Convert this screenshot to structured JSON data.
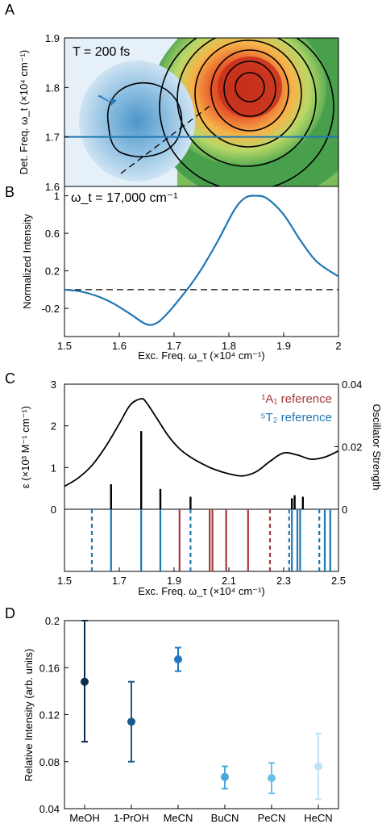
{
  "chart_data": [
    {
      "panel": "A",
      "type": "heatmap",
      "annotation": "T = 200 fs",
      "ylabel": "Det. Freq. ω_t (×10⁴ cm⁻¹)",
      "yticks": [
        "1.6",
        "1.7",
        "1.8",
        "1.9"
      ],
      "ylim": [
        1.6,
        1.9
      ],
      "xlim": [
        1.5,
        2.0
      ],
      "hline_y": 1.7,
      "peaks": [
        {
          "sign": "negative",
          "x": 1.6,
          "y": 1.73
        },
        {
          "sign": "positive",
          "x": 1.85,
          "y": 1.8
        }
      ],
      "colors": {
        "positive": "#d7301f",
        "negative": "#3b8bc2",
        "line": "#1f77b4"
      }
    },
    {
      "panel": "B",
      "type": "line",
      "annotation": "ω_t = 17,000 cm⁻¹",
      "ylabel": "Normalized Intensity",
      "xlabel": "Exc. Freq. ω_τ (×10⁴ cm⁻¹)",
      "xticks": [
        "1.5",
        "1.6",
        "1.7",
        "1.8",
        "1.9",
        "2"
      ],
      "yticks": [
        "-0.2",
        "0.2",
        "0.6",
        "1"
      ],
      "xlim": [
        1.5,
        2.0
      ],
      "ylim": [
        -0.5,
        1.1
      ],
      "x": [
        1.5,
        1.53,
        1.56,
        1.59,
        1.62,
        1.65,
        1.67,
        1.69,
        1.71,
        1.73,
        1.75,
        1.78,
        1.81,
        1.83,
        1.85,
        1.87,
        1.9,
        1.93,
        1.96,
        2.0
      ],
      "y": [
        0.0,
        -0.02,
        -0.07,
        -0.15,
        -0.26,
        -0.37,
        -0.35,
        -0.24,
        -0.1,
        0.05,
        0.22,
        0.52,
        0.85,
        0.98,
        1.0,
        0.97,
        0.8,
        0.53,
        0.3,
        0.14
      ],
      "baseline": 0,
      "color": "#1f77b4"
    },
    {
      "panel": "C",
      "type": "line",
      "legend": [
        "¹A₁ reference",
        "⁵T₂ reference"
      ],
      "ylabel": "ε (×10³ M⁻¹ cm⁻¹)",
      "y2label": "Oscillator Strength",
      "xlabel": "Exc. Freq. ω_τ (×10⁴ cm⁻¹)",
      "xticks": [
        "1.5",
        "1.7",
        "1.9",
        "2.1",
        "2.3",
        "2.5"
      ],
      "yticks": [
        "0",
        "1",
        "2",
        "3"
      ],
      "y2ticks": [
        "0",
        "0.02",
        "0.04"
      ],
      "xlim": [
        1.5,
        2.5
      ],
      "ylim": [
        0,
        3
      ],
      "y2lim": [
        0,
        0.04
      ],
      "spectrum": {
        "x": [
          1.5,
          1.55,
          1.6,
          1.65,
          1.7,
          1.74,
          1.78,
          1.8,
          1.84,
          1.88,
          1.92,
          1.96,
          2.0,
          2.05,
          2.1,
          2.15,
          2.2,
          2.25,
          2.3,
          2.35,
          2.4,
          2.45,
          2.5
        ],
        "y": [
          0.55,
          0.75,
          1.05,
          1.5,
          2.05,
          2.5,
          2.65,
          2.55,
          2.15,
          1.75,
          1.45,
          1.25,
          1.1,
          0.95,
          0.85,
          0.8,
          0.9,
          1.15,
          1.35,
          1.3,
          1.2,
          1.25,
          1.4
        ]
      },
      "sticks_x": [
        1.67,
        1.78,
        1.85,
        1.96,
        2.33,
        2.34,
        2.37
      ],
      "sticks_y": [
        0.008,
        0.025,
        0.0065,
        0.004,
        0.0035,
        0.0045,
        0.004
      ],
      "ref_1A1_solid": [
        1.92,
        2.03,
        2.04,
        2.09,
        2.17
      ],
      "ref_1A1_dashed": [
        2.25
      ],
      "ref_5T2_solid": [
        1.67,
        1.78,
        1.85,
        2.33,
        2.35,
        2.36,
        2.45,
        2.47
      ],
      "ref_5T2_dashed": [
        1.6,
        1.96,
        2.32,
        2.43
      ],
      "colors": {
        "1A1": "#a23b3b",
        "5T2": "#1f77b4",
        "spectrum": "#000000"
      }
    },
    {
      "panel": "D",
      "type": "scatter",
      "ylabel": "Relative Intensity (arb. units)",
      "categories": [
        "MeOH",
        "1-PrOH",
        "MeCN",
        "BuCN",
        "PeCN",
        "HeCN"
      ],
      "yticks": [
        "0.04",
        "0.08",
        "0.12",
        "0.16",
        "0.2"
      ],
      "ylim": [
        0.04,
        0.2
      ],
      "values": [
        0.148,
        0.114,
        0.167,
        0.067,
        0.066,
        0.076
      ],
      "err_low": [
        0.097,
        0.08,
        0.157,
        0.057,
        0.053,
        0.048
      ],
      "err_high": [
        0.2,
        0.148,
        0.177,
        0.076,
        0.079,
        0.104
      ],
      "colors": [
        "#0d2c4f",
        "#1a5a8a",
        "#1f77c4",
        "#46a8dc",
        "#6cc0e8",
        "#bde3f5"
      ]
    }
  ]
}
